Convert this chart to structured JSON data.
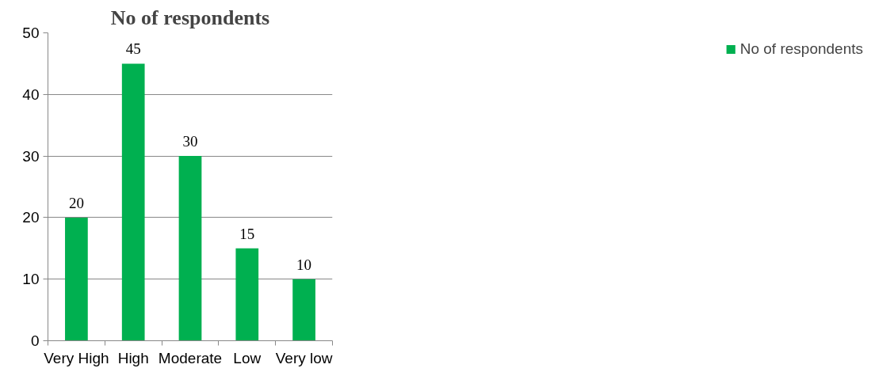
{
  "chart_data": {
    "type": "bar",
    "title": "No of respondents",
    "categories": [
      "Very High",
      "High",
      "Moderate",
      "Low",
      "Very low"
    ],
    "series": [
      {
        "name": "No of respondents",
        "color": "#00b050",
        "values": [
          20,
          45,
          30,
          15,
          10
        ]
      }
    ],
    "ylim": [
      0,
      50
    ],
    "yticks": [
      0,
      10,
      20,
      30,
      40,
      50
    ],
    "grid": "y",
    "legend": "right",
    "data_labels": true
  }
}
